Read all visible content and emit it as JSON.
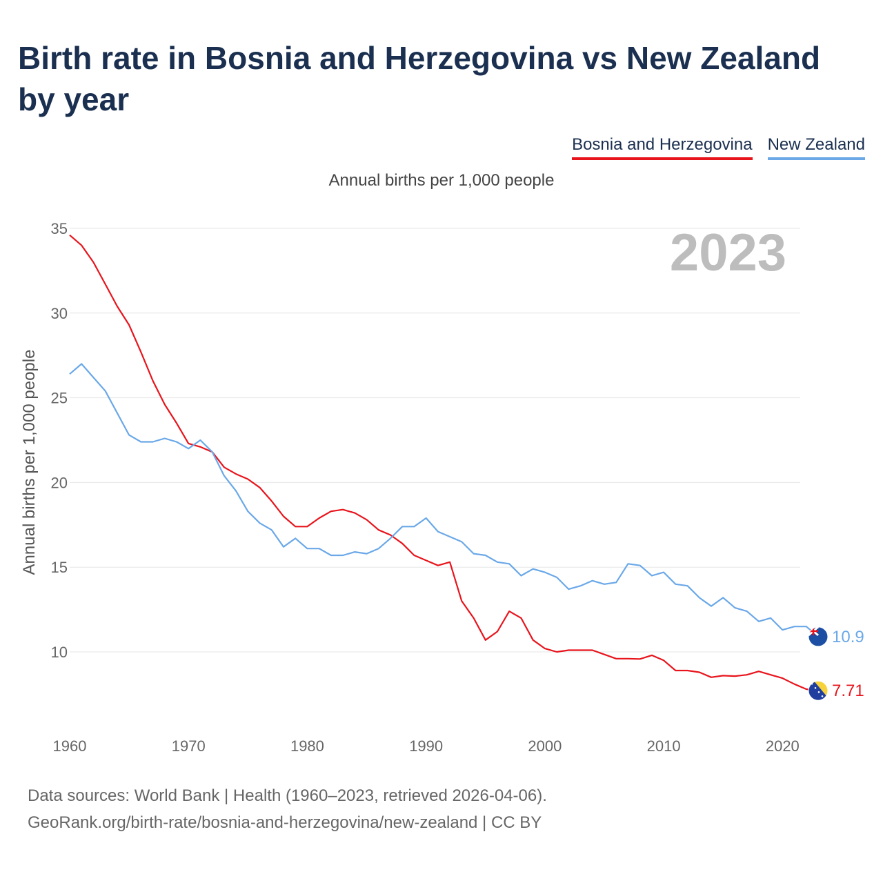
{
  "title": "Birth rate in Bosnia and Herzegovina vs New Zealand by year",
  "subtitle": "Annual births per 1,000 people",
  "source_line1": "Data sources: World Bank | Health (1960–2023, retrieved 2026-04-06).",
  "source_line2": "GeoRank.org/birth-rate/bosnia-and-herzegovina/new-zealand | CC BY",
  "chart_data": {
    "type": "line",
    "title": "Birth rate in Bosnia and Herzegovina vs New Zealand by year",
    "subtitle": "Annual births per 1,000 people",
    "xlabel": "",
    "ylabel": "Annual births per 1,000 people",
    "xlim": [
      1960,
      2023
    ],
    "ylim": [
      5.5,
      35
    ],
    "x_ticks": [
      1960,
      1970,
      1980,
      1990,
      2000,
      2010,
      2020
    ],
    "y_ticks": [
      10,
      15,
      20,
      25,
      30,
      35
    ],
    "grid": true,
    "legend_position": "top-right",
    "year_label": "2023",
    "x": [
      1960,
      1961,
      1962,
      1963,
      1964,
      1965,
      1966,
      1967,
      1968,
      1969,
      1970,
      1971,
      1972,
      1973,
      1974,
      1975,
      1976,
      1977,
      1978,
      1979,
      1980,
      1981,
      1982,
      1983,
      1984,
      1985,
      1986,
      1987,
      1988,
      1989,
      1990,
      1991,
      1992,
      1993,
      1994,
      1995,
      1996,
      1997,
      1998,
      1999,
      2000,
      2001,
      2002,
      2003,
      2004,
      2005,
      2006,
      2007,
      2008,
      2009,
      2010,
      2011,
      2012,
      2013,
      2014,
      2015,
      2016,
      2017,
      2018,
      2019,
      2020,
      2021,
      2022,
      2023
    ],
    "series": [
      {
        "name": "Bosnia and Herzegovina",
        "color": "#e8141c",
        "end_label": "7.71",
        "values": [
          34.6,
          34.0,
          33.0,
          31.7,
          30.4,
          29.3,
          27.7,
          26.0,
          24.6,
          23.5,
          22.3,
          22.1,
          21.8,
          20.9,
          20.5,
          20.2,
          19.7,
          18.9,
          18.0,
          17.4,
          17.4,
          17.9,
          18.3,
          18.4,
          18.2,
          17.8,
          17.2,
          16.9,
          16.4,
          15.7,
          15.4,
          15.1,
          15.3,
          13.0,
          12.0,
          10.7,
          11.2,
          12.4,
          12.0,
          10.7,
          10.2,
          10.0,
          10.1,
          10.1,
          10.1,
          9.85,
          9.6,
          9.6,
          9.58,
          9.8,
          9.5,
          8.9,
          8.9,
          8.8,
          8.5,
          8.6,
          8.57,
          8.65,
          8.85,
          8.65,
          8.45,
          8.1,
          7.8,
          7.71
        ]
      },
      {
        "name": "New Zealand",
        "color": "#6aa8e8",
        "end_label": "10.9",
        "values": [
          26.4,
          27.0,
          26.2,
          25.4,
          24.1,
          22.8,
          22.4,
          22.4,
          22.6,
          22.4,
          22.0,
          22.5,
          21.8,
          20.4,
          19.5,
          18.3,
          17.6,
          17.2,
          16.2,
          16.7,
          16.1,
          16.1,
          15.7,
          15.7,
          15.9,
          15.8,
          16.1,
          16.7,
          17.4,
          17.4,
          17.9,
          17.1,
          16.8,
          16.5,
          15.8,
          15.7,
          15.3,
          15.2,
          14.5,
          14.9,
          14.7,
          14.4,
          13.7,
          13.9,
          14.2,
          14.0,
          14.1,
          15.2,
          15.1,
          14.5,
          14.7,
          14.0,
          13.9,
          13.2,
          12.7,
          13.2,
          12.6,
          12.4,
          11.8,
          12.0,
          11.3,
          11.5,
          11.5,
          10.9
        ]
      }
    ]
  }
}
